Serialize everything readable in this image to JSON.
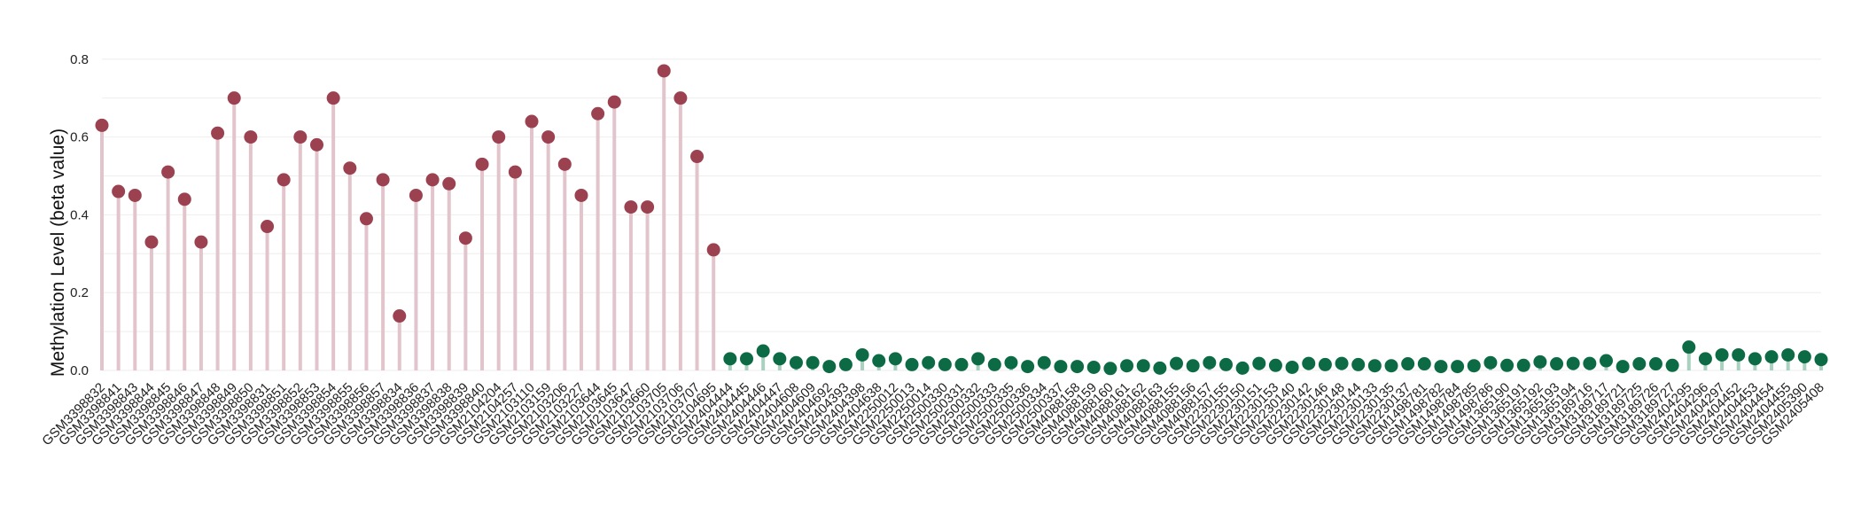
{
  "chart_data": {
    "type": "lollipop",
    "title": "",
    "xlabel": "",
    "ylabel": "Methylation Level (beta value)",
    "ylim": [
      0,
      0.82
    ],
    "yticks": [
      "0.0",
      "0.2",
      "0.4",
      "0.6",
      "0.8"
    ],
    "grid": true,
    "legend": "none",
    "colors": {
      "group_a_point": "#9b4150",
      "group_a_stem": "#e2c5cc",
      "group_b_point": "#0c6b45",
      "group_b_stem": "#a8d2bf",
      "grid": "#eeeeee"
    },
    "groups": [
      {
        "color_key": "group_a",
        "categories": [
          "GSM3398832",
          "GSM3398841",
          "GSM3398843",
          "GSM3398844",
          "GSM3398845",
          "GSM3398846",
          "GSM3398847",
          "GSM3398848",
          "GSM3398849",
          "GSM3398850",
          "GSM3398831",
          "GSM3398851",
          "GSM3398852",
          "GSM3398853",
          "GSM3398854",
          "GSM3398855",
          "GSM3398856",
          "GSM3398857",
          "GSM3398834",
          "GSM3398836",
          "GSM3398837",
          "GSM3398838",
          "GSM3398839",
          "GSM3398840",
          "GSM2104204",
          "GSM2104257",
          "GSM2103110",
          "GSM2103159",
          "GSM2103206",
          "GSM2103227",
          "GSM2103644",
          "GSM2103645",
          "GSM2103647",
          "GSM2103660",
          "GSM2103705",
          "GSM2103706",
          "GSM2103707",
          "GSM2104695"
        ],
        "values": [
          0.63,
          0.46,
          0.45,
          0.33,
          0.51,
          0.44,
          0.33,
          0.61,
          0.7,
          0.6,
          0.37,
          0.49,
          0.6,
          0.58,
          0.7,
          0.52,
          0.39,
          0.49,
          0.14,
          0.45,
          0.49,
          0.48,
          0.34,
          0.53,
          0.6,
          0.51,
          0.64,
          0.6,
          0.53,
          0.45,
          0.66,
          0.69,
          0.42,
          0.42,
          0.77,
          0.7,
          0.55,
          0.31
        ]
      },
      {
        "color_key": "group_b",
        "categories": [
          "GSM2404444",
          "GSM2404445",
          "GSM2404446",
          "GSM2404447",
          "GSM2404608",
          "GSM2404609",
          "GSM2404692",
          "GSM2404393",
          "GSM2404398",
          "GSM2404638",
          "GSM2250012",
          "GSM2250013",
          "GSM2250014",
          "GSM2500330",
          "GSM2500331",
          "GSM2500332",
          "GSM2500333",
          "GSM2500335",
          "GSM2500336",
          "GSM2500334",
          "GSM2500337",
          "GSM4088158",
          "GSM4088159",
          "GSM4088160",
          "GSM4088161",
          "GSM4088162",
          "GSM4088163",
          "GSM4088155",
          "GSM4088156",
          "GSM4088157",
          "GSM2230155",
          "GSM2230150",
          "GSM2230151",
          "GSM2230153",
          "GSM2230140",
          "GSM2230142",
          "GSM2230146",
          "GSM2230148",
          "GSM2230144",
          "GSM2230133",
          "GSM2230135",
          "GSM2230137",
          "GSM1498781",
          "GSM1498782",
          "GSM1498784",
          "GSM1498785",
          "GSM1498786",
          "GSM1365190",
          "GSM1365191",
          "GSM1365192",
          "GSM1365193",
          "GSM1365194",
          "GSM3189716",
          "GSM3189717",
          "GSM3189721",
          "GSM3189725",
          "GSM3189726",
          "GSM3189727",
          "GSM2404295",
          "GSM2404296",
          "GSM2404297",
          "GSM2404452",
          "GSM2404453",
          "GSM2404454",
          "GSM2404455",
          "GSM2405390",
          "GSM2405408"
        ],
        "values": [
          0.03,
          0.03,
          0.05,
          0.03,
          0.02,
          0.02,
          0.01,
          0.015,
          0.04,
          0.025,
          0.03,
          0.015,
          0.02,
          0.015,
          0.015,
          0.03,
          0.015,
          0.02,
          0.01,
          0.02,
          0.01,
          0.01,
          0.008,
          0.005,
          0.012,
          0.012,
          0.006,
          0.018,
          0.012,
          0.02,
          0.015,
          0.006,
          0.018,
          0.013,
          0.008,
          0.018,
          0.015,
          0.018,
          0.015,
          0.012,
          0.012,
          0.017,
          0.017,
          0.01,
          0.01,
          0.012,
          0.02,
          0.013,
          0.013,
          0.022,
          0.017,
          0.018,
          0.018,
          0.025,
          0.01,
          0.017,
          0.017,
          0.013,
          0.06,
          0.03,
          0.04,
          0.04,
          0.03,
          0.035,
          0.04,
          0.035,
          0.028
        ]
      }
    ]
  }
}
